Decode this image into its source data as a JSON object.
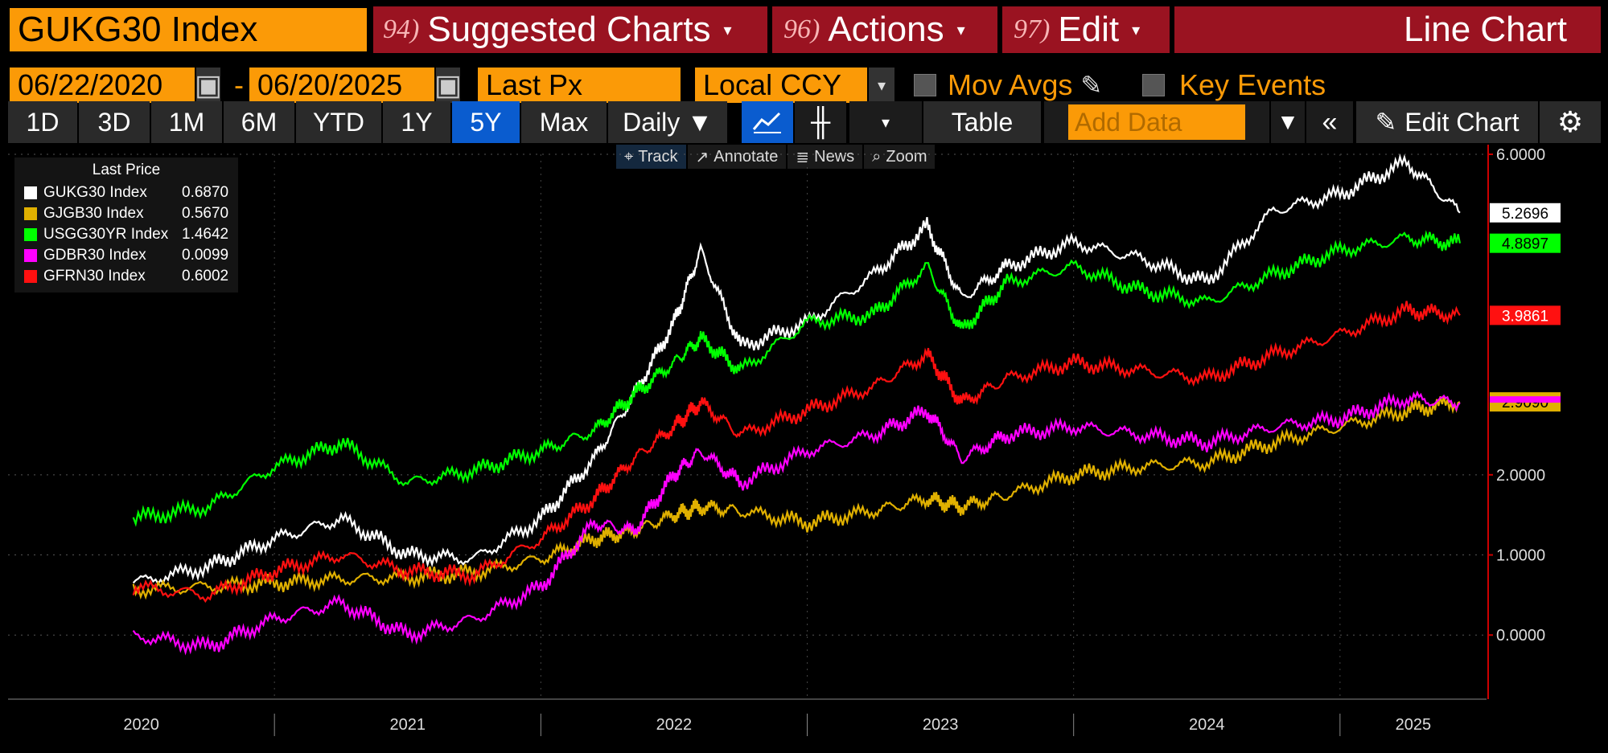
{
  "toolbar": {
    "ticker": "GUKG30 Index",
    "suggested": {
      "num": "94)",
      "label": "Suggested Charts"
    },
    "actions": {
      "num": "96)",
      "label": "Actions"
    },
    "edit": {
      "num": "97)",
      "label": "Edit"
    },
    "chart_type": "Line Chart",
    "caret": "▾"
  },
  "controls": {
    "start_date": "06/22/2020",
    "dash": "-",
    "end_date": "06/20/2025",
    "field": "Last Px",
    "currency": "Local CCY",
    "mov_avgs": "Mov Avgs",
    "key_events": "Key Events"
  },
  "ranges": [
    "1D",
    "3D",
    "1M",
    "6M",
    "YTD",
    "1Y",
    "5Y",
    "Max"
  ],
  "active_range": "5Y",
  "periodicity": "Daily ▼",
  "table_label": "Table",
  "add_data_placeholder": "Add Data",
  "edit_chart": "Edit Chart",
  "subtools": [
    "Track",
    "Annotate",
    "News",
    "Zoom"
  ],
  "legend": {
    "header": "Last Price",
    "items": [
      {
        "name": "GUKG30 Index",
        "value": "0.6870",
        "color": "#ffffff"
      },
      {
        "name": "GJGB30 Index",
        "value": "0.5670",
        "color": "#e0b000"
      },
      {
        "name": "USGG30YR Index",
        "value": "1.4642",
        "color": "#00ff00"
      },
      {
        "name": "GDBR30 Index",
        "value": "0.0099",
        "color": "#ff00ff"
      },
      {
        "name": "GFRN30 Index",
        "value": "0.6002",
        "color": "#ff1010"
      }
    ]
  },
  "chart_data": {
    "type": "line",
    "ylim": [
      -0.8,
      6.0
    ],
    "y_ticks": [
      "6.0000",
      "2.0000",
      "1.0000",
      "0.0000"
    ],
    "x_ticks": [
      "2020",
      "2021",
      "2022",
      "2023",
      "2024",
      "2025"
    ],
    "series": [
      {
        "name": "GUKG30 Index",
        "color": "#ffffff",
        "last": "5.2696",
        "x": [
          2020.47,
          2020.75,
          2021.0,
          2021.25,
          2021.5,
          2021.75,
          2022.0,
          2022.2,
          2022.35,
          2022.5,
          2022.6,
          2022.75,
          2023.0,
          2023.25,
          2023.45,
          2023.58,
          2023.75,
          2024.0,
          2024.25,
          2024.5,
          2024.75,
          2025.0,
          2025.25,
          2025.45
        ],
        "y": [
          0.65,
          0.85,
          1.2,
          1.45,
          1.0,
          0.95,
          1.45,
          2.2,
          3.0,
          3.9,
          4.8,
          3.6,
          3.9,
          4.5,
          5.1,
          4.2,
          4.6,
          4.9,
          4.7,
          4.4,
          5.3,
          5.5,
          5.9,
          5.27
        ]
      },
      {
        "name": "GJGB30 Index",
        "color": "#e0b000",
        "last": "2.9090",
        "x": [
          2020.47,
          2020.75,
          2021.0,
          2021.25,
          2021.5,
          2021.75,
          2022.0,
          2022.2,
          2022.35,
          2022.5,
          2022.6,
          2022.75,
          2023.0,
          2023.25,
          2023.45,
          2023.58,
          2023.75,
          2024.0,
          2024.25,
          2024.5,
          2024.75,
          2025.0,
          2025.25,
          2025.45
        ],
        "y": [
          0.57,
          0.6,
          0.65,
          0.7,
          0.72,
          0.78,
          0.95,
          1.2,
          1.3,
          1.5,
          1.6,
          1.55,
          1.4,
          1.55,
          1.7,
          1.6,
          1.75,
          2.0,
          2.1,
          2.15,
          2.4,
          2.6,
          2.8,
          2.91
        ]
      },
      {
        "name": "USGG30YR Index",
        "color": "#00ff00",
        "last": "4.8897",
        "x": [
          2020.47,
          2020.75,
          2021.0,
          2021.25,
          2021.5,
          2021.75,
          2022.0,
          2022.2,
          2022.35,
          2022.5,
          2022.6,
          2022.75,
          2023.0,
          2023.25,
          2023.45,
          2023.58,
          2023.75,
          2024.0,
          2024.25,
          2024.5,
          2024.75,
          2025.0,
          2025.25,
          2025.45
        ],
        "y": [
          1.45,
          1.6,
          2.1,
          2.4,
          1.9,
          2.05,
          2.3,
          2.55,
          3.0,
          3.4,
          3.7,
          3.3,
          3.9,
          4.0,
          4.6,
          3.8,
          4.4,
          4.6,
          4.3,
          4.15,
          4.5,
          4.8,
          4.95,
          4.89
        ]
      },
      {
        "name": "GDBR30 Index",
        "color": "#ff00ff",
        "last": "",
        "x": [
          2020.47,
          2020.75,
          2021.0,
          2021.25,
          2021.5,
          2021.75,
          2022.0,
          2022.2,
          2022.35,
          2022.5,
          2022.6,
          2022.75,
          2023.0,
          2023.25,
          2023.45,
          2023.58,
          2023.75,
          2024.0,
          2024.25,
          2024.5,
          2024.75,
          2025.0,
          2025.25,
          2025.45
        ],
        "y": [
          0.0,
          -0.15,
          0.2,
          0.4,
          0.0,
          0.2,
          0.6,
          1.4,
          1.3,
          2.0,
          2.3,
          1.9,
          2.3,
          2.5,
          2.8,
          2.2,
          2.5,
          2.6,
          2.5,
          2.4,
          2.6,
          2.7,
          2.95,
          2.9
        ]
      },
      {
        "name": "GFRN30 Index",
        "color": "#ff1010",
        "last": "3.9861",
        "x": [
          2020.47,
          2020.75,
          2021.0,
          2021.25,
          2021.5,
          2021.75,
          2022.0,
          2022.2,
          2022.35,
          2022.5,
          2022.6,
          2022.75,
          2023.0,
          2023.25,
          2023.45,
          2023.58,
          2023.75,
          2024.0,
          2024.25,
          2024.5,
          2024.75,
          2025.0,
          2025.25,
          2025.45
        ],
        "y": [
          0.6,
          0.5,
          0.8,
          1.0,
          0.8,
          0.75,
          1.2,
          1.7,
          2.2,
          2.6,
          2.9,
          2.5,
          2.8,
          3.1,
          3.5,
          2.9,
          3.2,
          3.4,
          3.3,
          3.2,
          3.5,
          3.75,
          4.05,
          3.99
        ]
      }
    ]
  }
}
